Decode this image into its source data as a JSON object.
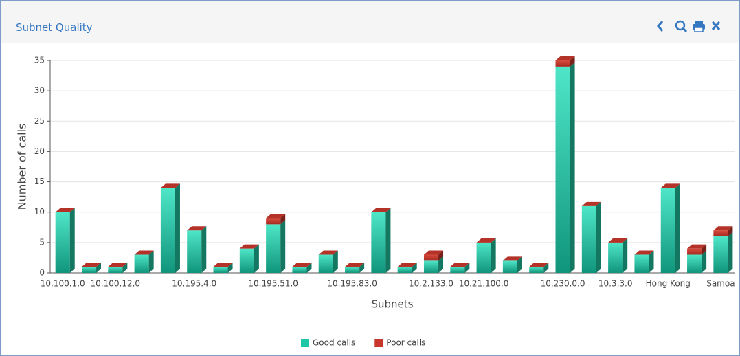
{
  "header": {
    "title": "Subnet Quality"
  },
  "chart_data": {
    "type": "bar",
    "stacked": true,
    "x_label": "Subnets",
    "y_label": "Number of calls",
    "categories": [
      "10.100.1.0",
      null,
      "10.100.12.0",
      null,
      null,
      "10.195.4.0",
      null,
      null,
      "10.195.51.0",
      null,
      null,
      "10.195.83.0",
      null,
      null,
      "10.2.133.0",
      null,
      "10.21.100.0",
      null,
      null,
      "10.230.0.0",
      null,
      "10.3.3.0",
      null,
      "Hong Kong",
      null,
      "Samoa"
    ],
    "series": [
      {
        "name": "Good calls",
        "color": "#1fc6a4",
        "values": [
          10,
          1,
          1,
          3,
          14,
          7,
          1,
          4,
          8,
          1,
          3,
          1,
          10,
          1,
          2,
          1,
          5,
          2,
          1,
          34,
          11,
          5,
          3,
          14,
          3,
          6
        ]
      },
      {
        "name": "Poor calls",
        "color": "#c8372b",
        "values": [
          0,
          0,
          0,
          0,
          0,
          0,
          0,
          0,
          1,
          0,
          0,
          0,
          0,
          0,
          1,
          0,
          0,
          0,
          0,
          1,
          0,
          0,
          0,
          0,
          1,
          1
        ]
      }
    ],
    "ylim": [
      0,
      35
    ],
    "yticks": [
      0,
      5,
      10,
      15,
      20,
      25,
      30,
      35
    ],
    "grid": true,
    "legend": "bottom"
  }
}
